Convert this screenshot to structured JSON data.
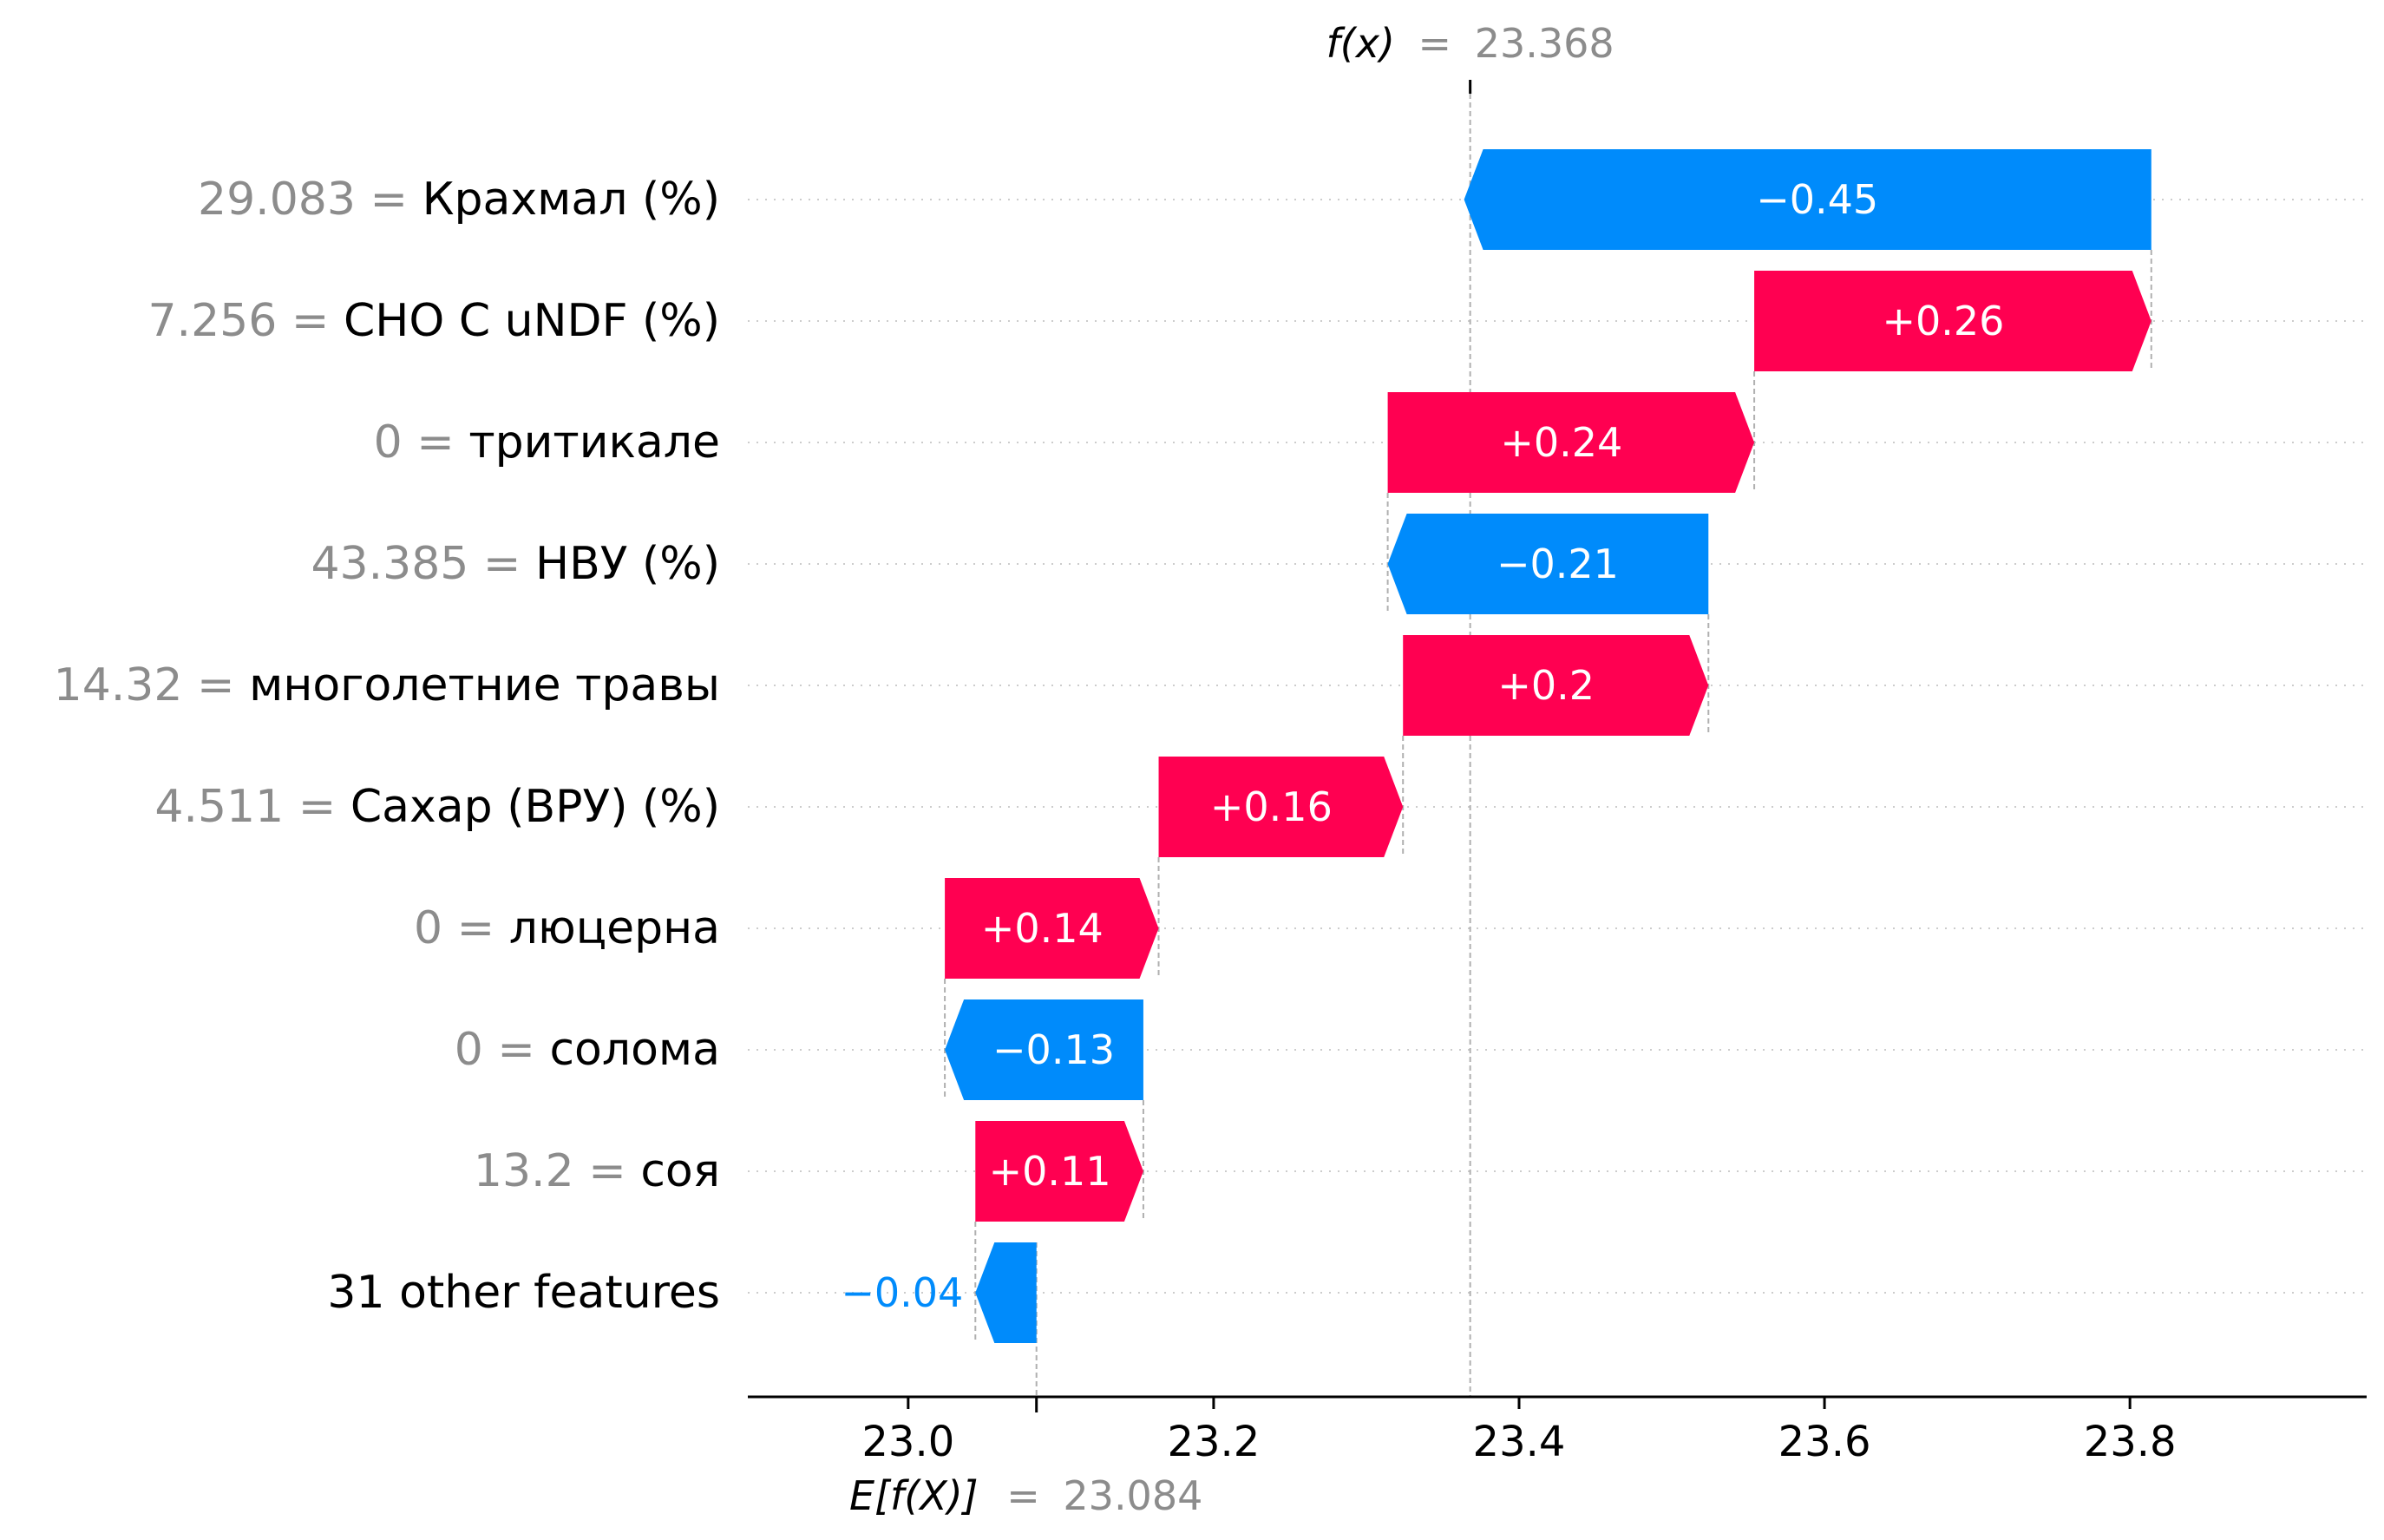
{
  "chart_data": {
    "type": "waterfall",
    "fx": {
      "symbol": "f(x)",
      "equals": "=",
      "value": 23.368,
      "value_label": "23.368"
    },
    "base": {
      "symbol": "E[f(X)]",
      "equals": "=",
      "value": 23.084,
      "value_label": "23.084"
    },
    "xlim": [
      22.895,
      23.955
    ],
    "x_ticks": [
      {
        "value": 23.0,
        "label": "23.0"
      },
      {
        "value": 23.2,
        "label": "23.2"
      },
      {
        "value": 23.4,
        "label": "23.4"
      },
      {
        "value": 23.6,
        "label": "23.6"
      },
      {
        "value": 23.8,
        "label": "23.8"
      }
    ],
    "features": [
      {
        "value_label": "29.083",
        "eq": " = ",
        "name": "Крахмал (%)",
        "shap": -0.45,
        "shap_label": "−0.45"
      },
      {
        "value_label": "7.256",
        "eq": " = ",
        "name": "CHO C uNDF (%)",
        "shap": 0.26,
        "shap_label": "+0.26"
      },
      {
        "value_label": "0",
        "eq": " = ",
        "name": "тритикале",
        "shap": 0.24,
        "shap_label": "+0.24"
      },
      {
        "value_label": "43.385",
        "eq": " = ",
        "name": "НВУ (%)",
        "shap": -0.21,
        "shap_label": "−0.21"
      },
      {
        "value_label": "14.32",
        "eq": " = ",
        "name": "многолетние травы",
        "shap": 0.2,
        "shap_label": "+0.2"
      },
      {
        "value_label": "4.511",
        "eq": " = ",
        "name": "Сахар (ВРУ) (%)",
        "shap": 0.16,
        "shap_label": "+0.16"
      },
      {
        "value_label": "0",
        "eq": " = ",
        "name": "люцерна",
        "shap": 0.14,
        "shap_label": "+0.14"
      },
      {
        "value_label": "0",
        "eq": " = ",
        "name": "солома",
        "shap": -0.13,
        "shap_label": "−0.13"
      },
      {
        "value_label": "13.2",
        "eq": " = ",
        "name": "соя",
        "shap": 0.11,
        "shap_label": "+0.11"
      },
      {
        "value_label": "",
        "eq": "",
        "name": "31 other features",
        "shap": -0.04,
        "shap_label": "−0.04"
      }
    ],
    "colors": {
      "positive": "#ff0051",
      "negative": "#008bfb",
      "value_text": "#8c8c8c",
      "axis": "#000000",
      "guide": "#b0b0b0"
    }
  }
}
